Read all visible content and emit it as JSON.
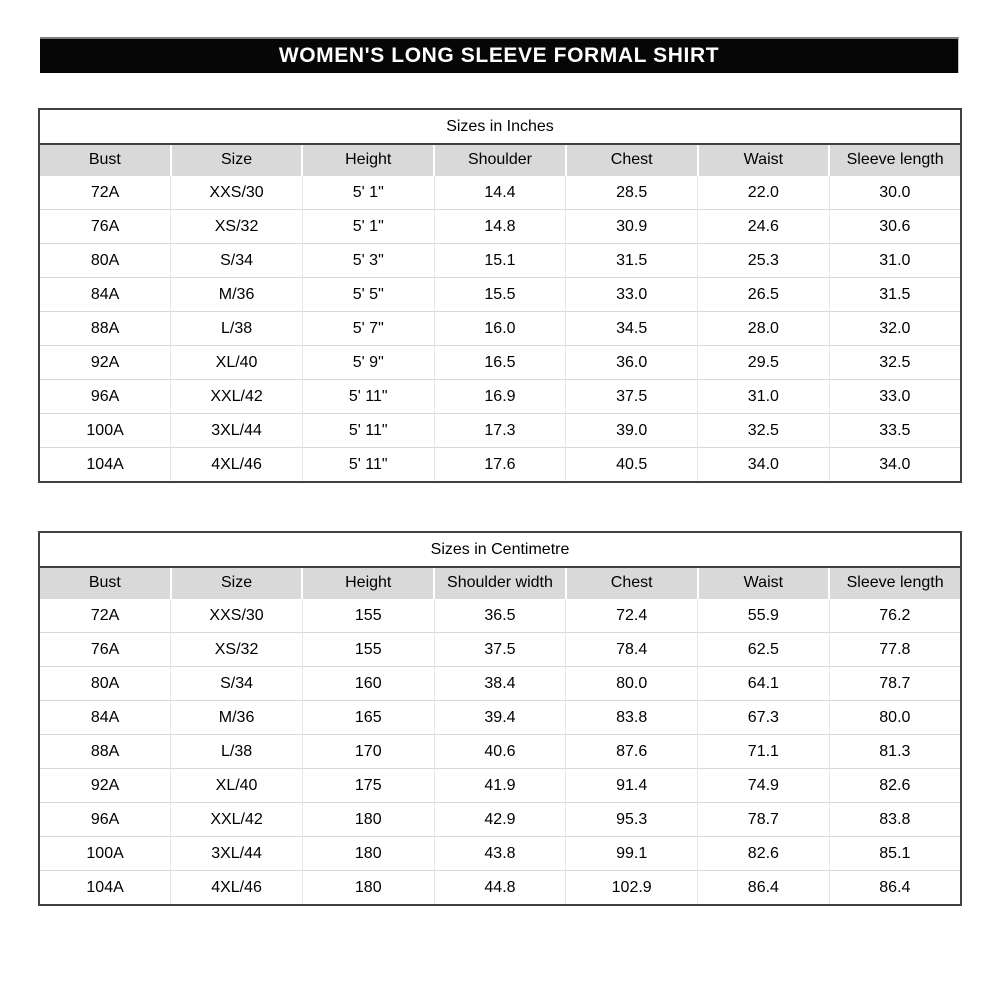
{
  "title": "WOMEN'S LONG SLEEVE FORMAL SHIRT",
  "colors": {
    "banner_background": "#060606",
    "banner_text": "#ffffff",
    "header_row_background": "#d9d9d9",
    "table_border_dark": "#404040",
    "grid_line_light": "#d9d9d9"
  },
  "tables": [
    {
      "id": "inches",
      "caption": "Sizes in Inches",
      "columns": [
        "Bust",
        "Size",
        "Height",
        "Shoulder",
        "Chest",
        "Waist",
        "Sleeve length"
      ],
      "rows": [
        [
          "72A",
          "XXS/30",
          "5' 1\"",
          "14.4",
          "28.5",
          "22.0",
          "30.0"
        ],
        [
          "76A",
          "XS/32",
          "5' 1\"",
          "14.8",
          "30.9",
          "24.6",
          "30.6"
        ],
        [
          "80A",
          "S/34",
          "5' 3\"",
          "15.1",
          "31.5",
          "25.3",
          "31.0"
        ],
        [
          "84A",
          "M/36",
          "5' 5\"",
          "15.5",
          "33.0",
          "26.5",
          "31.5"
        ],
        [
          "88A",
          "L/38",
          "5' 7\"",
          "16.0",
          "34.5",
          "28.0",
          "32.0"
        ],
        [
          "92A",
          "XL/40",
          "5' 9\"",
          "16.5",
          "36.0",
          "29.5",
          "32.5"
        ],
        [
          "96A",
          "XXL/42",
          "5' 11\"",
          "16.9",
          "37.5",
          "31.0",
          "33.0"
        ],
        [
          "100A",
          "3XL/44",
          "5' 11\"",
          "17.3",
          "39.0",
          "32.5",
          "33.5"
        ],
        [
          "104A",
          "4XL/46",
          "5' 11\"",
          "17.6",
          "40.5",
          "34.0",
          "34.0"
        ]
      ]
    },
    {
      "id": "centimetre",
      "caption": "Sizes in Centimetre",
      "columns": [
        "Bust",
        "Size",
        "Height",
        "Shoulder width",
        "Chest",
        "Waist",
        "Sleeve length"
      ],
      "rows": [
        [
          "72A",
          "XXS/30",
          "155",
          "36.5",
          "72.4",
          "55.9",
          "76.2"
        ],
        [
          "76A",
          "XS/32",
          "155",
          "37.5",
          "78.4",
          "62.5",
          "77.8"
        ],
        [
          "80A",
          "S/34",
          "160",
          "38.4",
          "80.0",
          "64.1",
          "78.7"
        ],
        [
          "84A",
          "M/36",
          "165",
          "39.4",
          "83.8",
          "67.3",
          "80.0"
        ],
        [
          "88A",
          "L/38",
          "170",
          "40.6",
          "87.6",
          "71.1",
          "81.3"
        ],
        [
          "92A",
          "XL/40",
          "175",
          "41.9",
          "91.4",
          "74.9",
          "82.6"
        ],
        [
          "96A",
          "XXL/42",
          "180",
          "42.9",
          "95.3",
          "78.7",
          "83.8"
        ],
        [
          "100A",
          "3XL/44",
          "180",
          "43.8",
          "99.1",
          "82.6",
          "85.1"
        ],
        [
          "104A",
          "4XL/46",
          "180",
          "44.8",
          "102.9",
          "86.4",
          "86.4"
        ]
      ]
    }
  ]
}
